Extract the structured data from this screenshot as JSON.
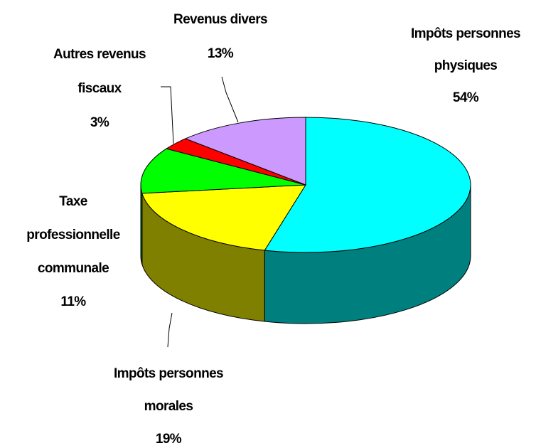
{
  "chart_data": {
    "type": "pie",
    "categories": [
      "Impôts personnes physiques",
      "Impôts personnes morales",
      "Taxe professionnelle communale",
      "Autres revenus fiscaux",
      "Revenus divers"
    ],
    "values": [
      54,
      19,
      11,
      3,
      13
    ],
    "value_labels": [
      "54%",
      "19%",
      "11%",
      "3%",
      "13%"
    ],
    "colors": [
      "#00ffff",
      "#ffff00",
      "#00ff00",
      "#ff0000",
      "#cc99ff"
    ]
  }
}
